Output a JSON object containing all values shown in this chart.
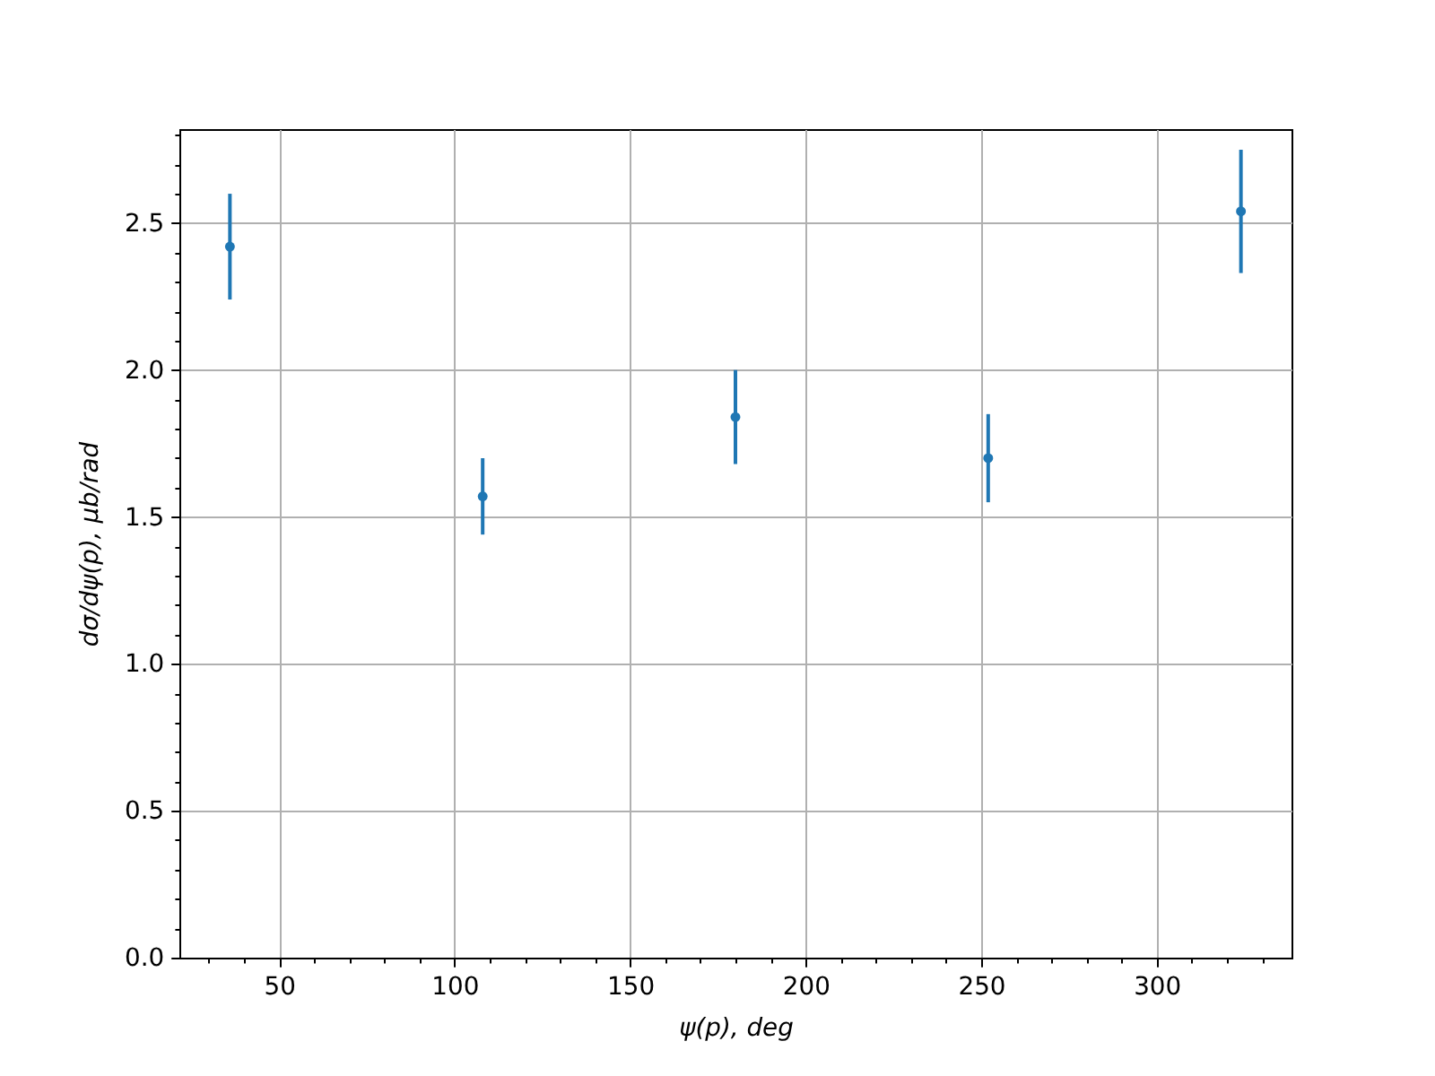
{
  "chart_data": {
    "type": "scatter",
    "xlabel": "ψ(p), deg",
    "ylabel": "dσ/dψ(p), μb/rad",
    "x": [
      36,
      108,
      180,
      252,
      324
    ],
    "values": [
      2.42,
      1.57,
      1.84,
      1.7,
      2.54
    ],
    "errors": [
      0.18,
      0.13,
      0.16,
      0.15,
      0.21
    ],
    "color": "#1f77b4",
    "marker": "circle",
    "grid": true,
    "xlim": [
      21.6,
      338.4
    ],
    "ylim": [
      0,
      2.82
    ],
    "xticks": [
      {
        "value": 30,
        "label": null
      },
      {
        "value": 40,
        "label": null
      },
      50,
      {
        "value": 60,
        "label": null
      },
      {
        "value": 70,
        "label": null
      },
      {
        "value": 80,
        "label": null
      },
      {
        "value": 90,
        "label": null
      },
      100,
      {
        "value": 110,
        "label": null
      },
      {
        "value": 120,
        "label": null
      },
      {
        "value": 130,
        "label": null
      },
      {
        "value": 140,
        "label": null
      },
      150,
      {
        "value": 160,
        "label": null
      },
      {
        "value": 170,
        "label": null
      },
      {
        "value": 180,
        "label": null
      },
      {
        "value": 190,
        "label": null
      },
      200,
      {
        "value": 210,
        "label": null
      },
      {
        "value": 220,
        "label": null
      },
      {
        "value": 230,
        "label": null
      },
      {
        "value": 240,
        "label": null
      },
      250,
      {
        "value": 260,
        "label": null
      },
      {
        "value": 270,
        "label": null
      },
      {
        "value": 280,
        "label": null
      },
      {
        "value": 290,
        "label": null
      },
      300,
      {
        "value": 310,
        "label": null
      },
      {
        "value": 320,
        "label": null
      },
      {
        "value": 330,
        "label": null
      }
    ],
    "yticks": [
      {
        "value": 0,
        "label": "0.0"
      },
      {
        "value": 0.1,
        "label": null
      },
      {
        "value": 0.2,
        "label": null
      },
      {
        "value": 0.3,
        "label": null
      },
      {
        "value": 0.4,
        "label": null
      },
      0.5,
      {
        "value": 0.6,
        "label": null
      },
      {
        "value": 0.7,
        "label": null
      },
      {
        "value": 0.8,
        "label": null
      },
      {
        "value": 0.9,
        "label": null
      },
      {
        "value": 1,
        "label": "1.0"
      },
      {
        "value": 1.1,
        "label": null
      },
      {
        "value": 1.2,
        "label": null
      },
      {
        "value": 1.3,
        "label": null
      },
      {
        "value": 1.4,
        "label": null
      },
      1.5,
      {
        "value": 1.6,
        "label": null
      },
      {
        "value": 1.7,
        "label": null
      },
      {
        "value": 1.8,
        "label": null
      },
      {
        "value": 1.9,
        "label": null
      },
      {
        "value": 2,
        "label": "2.0"
      },
      {
        "value": 2.1,
        "label": null
      },
      {
        "value": 2.2,
        "label": null
      },
      {
        "value": 2.3,
        "label": null
      },
      {
        "value": 2.4,
        "label": null
      },
      2.5,
      {
        "value": 2.6,
        "label": null
      },
      {
        "value": 2.7,
        "label": null
      },
      {
        "value": 2.8,
        "label": null
      }
    ]
  }
}
